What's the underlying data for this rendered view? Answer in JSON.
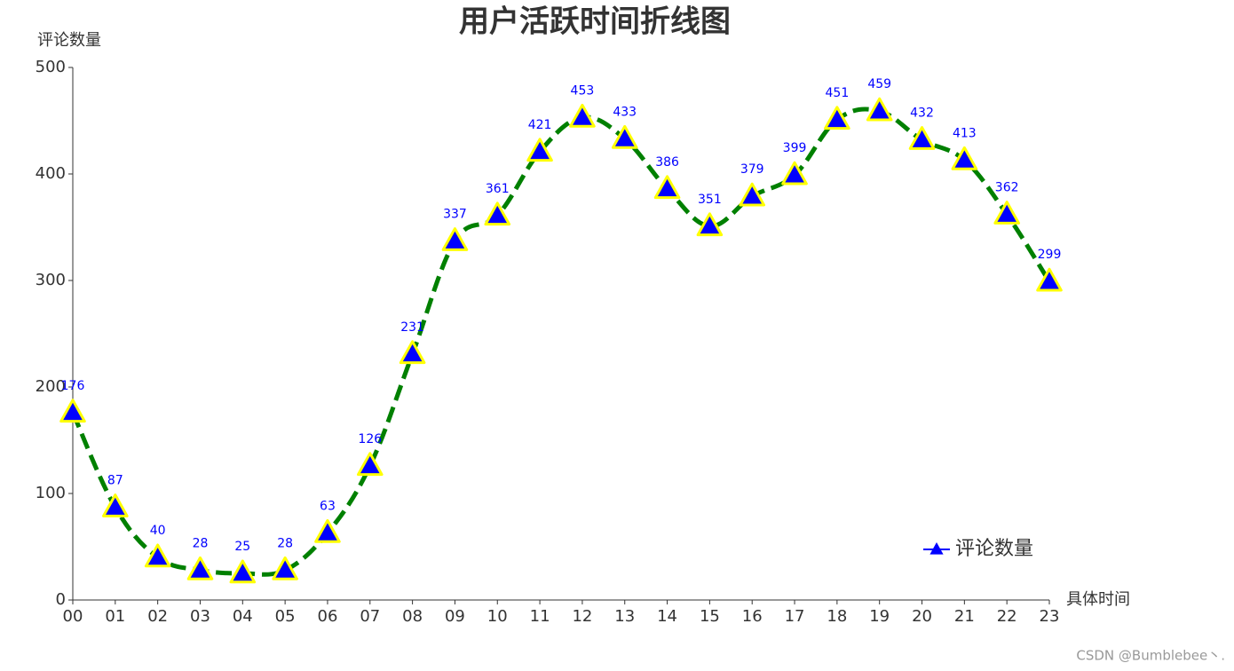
{
  "chart_data": {
    "type": "line",
    "title": "用户活跃时间折线图",
    "y_label": "评论数量",
    "x_label": "具体时间",
    "categories": [
      "00",
      "01",
      "02",
      "03",
      "04",
      "05",
      "06",
      "07",
      "08",
      "09",
      "10",
      "11",
      "12",
      "13",
      "14",
      "15",
      "16",
      "17",
      "18",
      "19",
      "20",
      "21",
      "22",
      "23"
    ],
    "series": [
      {
        "name": "评论数量",
        "color": "#008000",
        "marker_color": "#0000ff",
        "marker_border": "#ffff00",
        "values": [
          176,
          87,
          40,
          28,
          25,
          28,
          63,
          126,
          231,
          337,
          361,
          421,
          453,
          433,
          386,
          351,
          379,
          399,
          451,
          459,
          432,
          413,
          362,
          299
        ]
      }
    ],
    "ylim": [
      0,
      500
    ],
    "yticks": [
      0,
      100,
      200,
      300,
      400,
      500
    ],
    "legend": "bottom-right",
    "smooth": true,
    "dashed": true,
    "watermark": "CSDN @Bumblebee丶."
  }
}
